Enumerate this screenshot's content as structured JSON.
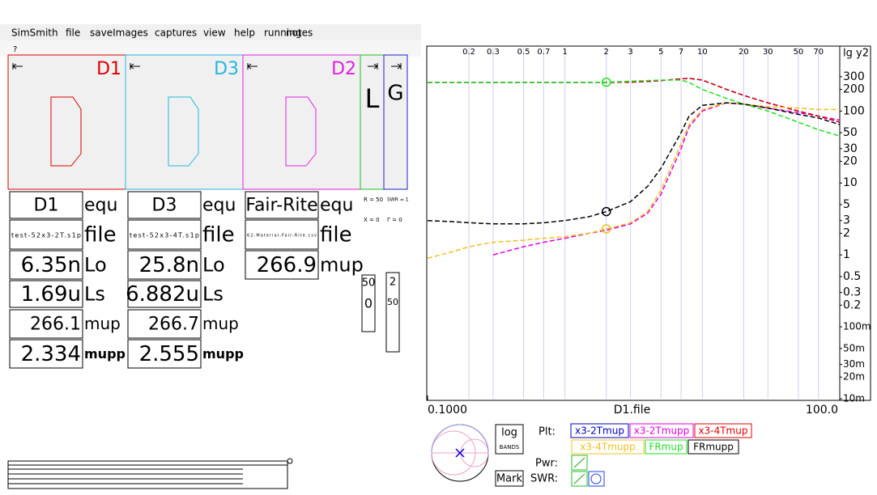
{
  "menu": [
    "SimSmith",
    "file",
    "saveImages",
    "captures",
    "view",
    "help",
    "running",
    "notes"
  ],
  "help": "?",
  "panels": [
    {
      "label": "D1",
      "color": "#e00000"
    },
    {
      "label": "D3",
      "color": "#20b8e0"
    },
    {
      "label": "D2",
      "color": "#e020e0"
    },
    {
      "label": "L",
      "color": "#20c020"
    },
    {
      "label": "G",
      "color": "#2020d0"
    }
  ],
  "columns": [
    {
      "rows": [
        "D1",
        "test-52x3-2T.s1p",
        "6.35n",
        "1.69u",
        "266.1",
        "2.334"
      ],
      "units": [
        "equ",
        "file",
        "Lo",
        "Ls",
        "mup",
        "mupp"
      ]
    },
    {
      "rows": [
        "D3",
        "test-52x3-4T.s1p",
        "25.8n",
        "6.882u",
        "266.7",
        "2.555"
      ],
      "units": [
        "equ",
        "file",
        "Lo",
        "Ls",
        "mup",
        "mupp"
      ]
    },
    {
      "rows": [
        "Fair-Rite",
        "62-Material-Fair-Rite.csv",
        "266.9"
      ],
      "units": [
        "equ",
        "file",
        "mup"
      ]
    }
  ],
  "controls": {
    "r": "R = 50",
    "swr": "SWR = 1",
    "x": "X = 0",
    "gamma": "Γ = 0",
    "slider1": [
      "50",
      "0"
    ],
    "slider2": [
      "2",
      "50"
    ]
  },
  "buttons": {
    "log": "log",
    "bands": "BANDS",
    "mark": "Mark",
    "plt": "Plt:",
    "pwr": "Pwr:",
    "swr": "SWR:"
  },
  "chart_data": {
    "type": "line",
    "xlabel": "D1.file",
    "y2label": "lg y2",
    "log_x": true,
    "log_y": true,
    "x": [
      0.1,
      0.15,
      0.2,
      0.3,
      0.5,
      0.7,
      1,
      1.5,
      2,
      3,
      4,
      5,
      7,
      8,
      10,
      15,
      20,
      30,
      50,
      70,
      100
    ],
    "xlim": [
      0.1,
      100
    ],
    "xticks": [
      0.2,
      0.3,
      0.5,
      0.7,
      1,
      2,
      3,
      5,
      7,
      10,
      20,
      30,
      50,
      70
    ],
    "xticks_bottom": [
      {
        "value": 0.1,
        "label": "0.1000"
      },
      {
        "value": 100,
        "label": "100.0"
      }
    ],
    "ylim": [
      0.01,
      800
    ],
    "y2ticks": [
      300,
      200,
      100,
      50,
      30,
      20,
      10,
      5,
      3,
      2,
      1,
      0.5,
      0.3,
      0.2,
      {
        "value": 0.1,
        "label": "100m"
      },
      {
        "value": 0.05,
        "label": "50m"
      },
      {
        "value": 0.03,
        "label": "30m"
      },
      {
        "value": 0.02,
        "label": "20m"
      },
      {
        "value": 0.01,
        "label": "10m"
      }
    ],
    "series": [
      {
        "name": "x3-2Tmup",
        "color": "#0000c0",
        "values": [
          250,
          250,
          250,
          250,
          250,
          250,
          250,
          250,
          250,
          252,
          258,
          265,
          280,
          285,
          270,
          200,
          165,
          130,
          100,
          85,
          70
        ]
      },
      {
        "name": "x3-2Tmupp",
        "color": "#e000e0",
        "values": [
          null,
          null,
          null,
          1.0,
          1.3,
          1.5,
          1.7,
          2.0,
          2.2,
          2.7,
          3.8,
          7,
          30,
          60,
          100,
          130,
          125,
          110,
          95,
          85,
          75
        ]
      },
      {
        "name": "x3-4Tmup",
        "color": "#e00000",
        "values": [
          250,
          250,
          250,
          250,
          250,
          250,
          250,
          250,
          250,
          252,
          258,
          265,
          280,
          285,
          270,
          200,
          165,
          130,
          100,
          85,
          70
        ]
      },
      {
        "name": "x3-4Tmupp",
        "color": "#f0c020",
        "values": [
          0.9,
          1.1,
          1.3,
          1.5,
          1.6,
          1.7,
          1.8,
          2.0,
          2.3,
          2.8,
          4,
          8,
          35,
          65,
          105,
          130,
          125,
          115,
          110,
          105,
          105
        ]
      },
      {
        "name": "FRmup",
        "color": "#20e020",
        "values": [
          250,
          250,
          250,
          250,
          250,
          250,
          250,
          250,
          252,
          260,
          265,
          270,
          270,
          250,
          200,
          150,
          125,
          100,
          70,
          55,
          45
        ]
      },
      {
        "name": "FRmupp",
        "color": "#000000",
        "values": [
          3,
          2.9,
          2.8,
          2.7,
          2.7,
          2.8,
          3,
          3.4,
          4,
          5.5,
          9,
          16,
          50,
          85,
          120,
          130,
          125,
          110,
          90,
          80,
          65
        ]
      }
    ]
  }
}
